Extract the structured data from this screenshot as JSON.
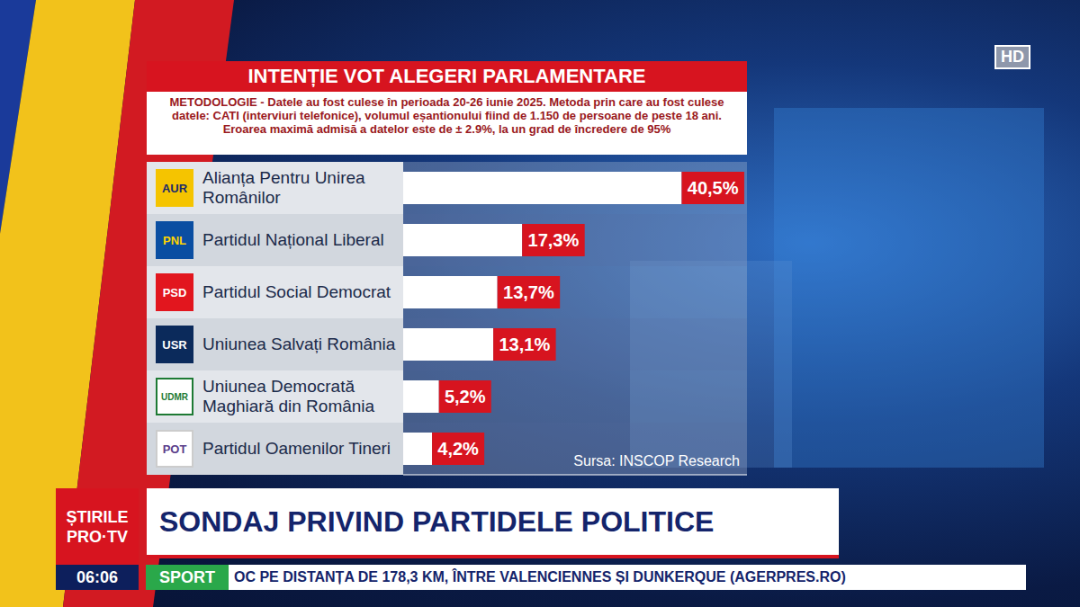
{
  "chart_data": {
    "type": "bar",
    "orientation": "horizontal",
    "title": "INTENȚIE VOT ALEGERI PARLAMENTARE",
    "subtitle": "METODOLOGIE - Datele au fost culese în perioada 20-26 iunie 2025. Metoda prin care au fost culese datele: CATI (interviuri telefonice), volumul eșantionului fiind de 1.150 de persoane de peste 18 ani. Eroarea maximă admisă a datelor este de ± 2.9%, la un grad de încredere de 95%",
    "categories": [
      "Alianța Pentru Unirea Românilor",
      "Partidul Național Liberal",
      "Partidul Social Democrat",
      "Uniunea Salvați România",
      "Uniunea Democrată Maghiară din România",
      "Partidul Oamenilor Tineri"
    ],
    "values": [
      40.5,
      17.3,
      13.7,
      13.1,
      5.2,
      4.2
    ],
    "value_labels": [
      "40,5%",
      "17,3%",
      "13,7%",
      "13,1%",
      "5,2%",
      "4,2%"
    ],
    "logos": [
      "AUR",
      "PNL",
      "PSD",
      "USR",
      "UDMR",
      "POT"
    ],
    "source": "Sursa: INSCOP Research",
    "color": "#ffffff",
    "data_labels": true,
    "tick_labels": false,
    "grid": false,
    "xlim": [
      0,
      50
    ]
  },
  "screen": {
    "channel": "ȘTIRILE",
    "channel_sub": "PRO·TV",
    "headline": "SONDAJ PRIVIND PARTIDELE POLITICE",
    "time": "06:06",
    "section": "SPORT",
    "ticker": "OC PE DISTANȚA DE 178,3 KM, ÎNTRE VALENCIENNES ȘI DUNKERQUE (AGERPRES.RO)",
    "badge": "HD"
  }
}
